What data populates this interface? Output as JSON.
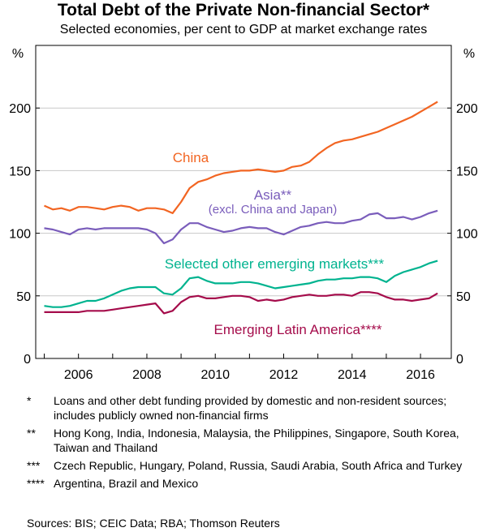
{
  "title": "Total Debt of the Private Non-financial Sector*",
  "subtitle": "Selected economies, per cent to GDP at market exchange rates",
  "footnotes": [
    {
      "marker": "*",
      "text": "Loans and other debt funding provided by domestic and non-resident sources; includes publicly owned non-financial firms"
    },
    {
      "marker": "**",
      "text": "Hong Kong, India, Indonesia, Malaysia, the Philippines, Singapore, South Korea, Taiwan and Thailand"
    },
    {
      "marker": "***",
      "text": "Czech Republic, Hungary, Poland, Russia, Saudi Arabia, South Africa and Turkey"
    },
    {
      "marker": "****",
      "text": "Argentina, Brazil and Mexico"
    }
  ],
  "sources": "Sources:  BIS; CEIC Data; RBA; Thomson Reuters",
  "chart_data": {
    "type": "line",
    "title": "Total Debt of the Private Non-financial Sector*",
    "ylabel_left": "%",
    "ylabel_right": "%",
    "ylim": [
      0,
      250
    ],
    "yticks": [
      0,
      50,
      100,
      150,
      200
    ],
    "xlim": [
      2004.75,
      2016.9
    ],
    "xticks": [
      2006,
      2008,
      2010,
      2012,
      2014,
      2016
    ],
    "x": [
      2005.0,
      2005.25,
      2005.5,
      2005.75,
      2006.0,
      2006.25,
      2006.5,
      2006.75,
      2007.0,
      2007.25,
      2007.5,
      2007.75,
      2008.0,
      2008.25,
      2008.5,
      2008.75,
      2009.0,
      2009.25,
      2009.5,
      2009.75,
      2010.0,
      2010.25,
      2010.5,
      2010.75,
      2011.0,
      2011.25,
      2011.5,
      2011.75,
      2012.0,
      2012.25,
      2012.5,
      2012.75,
      2013.0,
      2013.25,
      2013.5,
      2013.75,
      2014.0,
      2014.25,
      2014.5,
      2014.75,
      2015.0,
      2015.25,
      2015.5,
      2015.75,
      2016.0,
      2016.25,
      2016.5
    ],
    "series": [
      {
        "name": "China",
        "color": "#f26522",
        "values": [
          122,
          119,
          120,
          118,
          121,
          121,
          120,
          119,
          121,
          122,
          121,
          118,
          120,
          120,
          119,
          116,
          125,
          136,
          141,
          143,
          146,
          148,
          149,
          150,
          150,
          151,
          150,
          149,
          150,
          153,
          154,
          157,
          163,
          168,
          172,
          174,
          175,
          177,
          179,
          181,
          184,
          187,
          190,
          193,
          197,
          201,
          205
        ]
      },
      {
        "name": "Asia**",
        "sublabel": "(excl. China and Japan)",
        "color": "#7a5dbb",
        "values": [
          104,
          103,
          101,
          99,
          103,
          104,
          103,
          104,
          104,
          104,
          104,
          104,
          103,
          100,
          92,
          95,
          103,
          108,
          108,
          105,
          103,
          101,
          102,
          104,
          105,
          104,
          104,
          101,
          99,
          102,
          105,
          106,
          108,
          109,
          108,
          108,
          110,
          111,
          115,
          116,
          112,
          112,
          113,
          111,
          113,
          116,
          118
        ]
      },
      {
        "name": "Selected other emerging markets***",
        "color": "#00b38f",
        "values": [
          42,
          41,
          41,
          42,
          44,
          46,
          46,
          48,
          51,
          54,
          56,
          57,
          57,
          57,
          52,
          51,
          56,
          64,
          65,
          62,
          60,
          60,
          60,
          61,
          61,
          60,
          58,
          56,
          57,
          58,
          59,
          60,
          62,
          63,
          63,
          64,
          64,
          65,
          65,
          64,
          61,
          66,
          69,
          71,
          73,
          76,
          78
        ]
      },
      {
        "name": "Emerging Latin America****",
        "color": "#a50c4b",
        "values": [
          37,
          37,
          37,
          37,
          37,
          38,
          38,
          38,
          39,
          40,
          41,
          42,
          43,
          44,
          36,
          38,
          45,
          49,
          50,
          48,
          48,
          49,
          50,
          50,
          49,
          46,
          47,
          46,
          47,
          49,
          50,
          51,
          50,
          50,
          51,
          51,
          50,
          53,
          53,
          52,
          49,
          47,
          47,
          46,
          47,
          48,
          52
        ]
      }
    ],
    "annotations": [
      "China",
      "Asia**",
      "(excl. China and Japan)",
      "Selected other emerging markets***",
      "Emerging Latin America****"
    ],
    "grid": true,
    "legend": "inline labels"
  }
}
